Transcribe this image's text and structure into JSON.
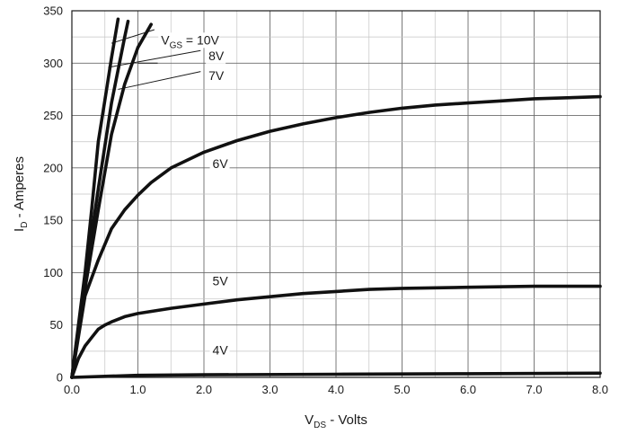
{
  "chart_data": {
    "type": "line",
    "title": "",
    "xlabel": {
      "main": "V",
      "sub": "DS",
      "rest": " - Volts"
    },
    "ylabel": {
      "main": "I",
      "sub": "D",
      "rest": " - Amperes"
    },
    "xlim": [
      0,
      8
    ],
    "ylim": [
      0,
      350
    ],
    "grid": true,
    "x_ticks": [
      {
        "value": 0,
        "label": "0.0"
      },
      {
        "value": 1,
        "label": "1.0"
      },
      {
        "value": 2,
        "label": "2.0"
      },
      {
        "value": 3,
        "label": "3.0"
      },
      {
        "value": 4,
        "label": "4.0"
      },
      {
        "value": 5,
        "label": "5.0"
      },
      {
        "value": 6,
        "label": "6.0"
      },
      {
        "value": 7,
        "label": "7.0"
      },
      {
        "value": 8,
        "label": "8.0"
      }
    ],
    "y_ticks": [
      {
        "value": 0,
        "label": "0"
      },
      {
        "value": 50,
        "label": "50"
      },
      {
        "value": 100,
        "label": "100"
      },
      {
        "value": 150,
        "label": "150"
      },
      {
        "value": 200,
        "label": "200"
      },
      {
        "value": 250,
        "label": "250"
      },
      {
        "value": 300,
        "label": "300"
      },
      {
        "value": 350,
        "label": "350"
      }
    ],
    "series": [
      {
        "name": "V_GS = 10V",
        "label": {
          "main": "V",
          "sub": "GS",
          "rest": " = 10V"
        },
        "x": [
          0,
          0.1,
          0.2,
          0.3,
          0.4,
          0.5,
          0.6,
          0.7
        ],
        "y": [
          0,
          50,
          100,
          160,
          225,
          265,
          305,
          342
        ]
      },
      {
        "name": "8V",
        "label": {
          "main": "8V",
          "sub": "",
          "rest": ""
        },
        "x": [
          0,
          0.2,
          0.4,
          0.6,
          0.8,
          0.85
        ],
        "y": [
          0,
          95,
          180,
          262,
          325,
          340
        ]
      },
      {
        "name": "7V",
        "label": {
          "main": "7V",
          "sub": "",
          "rest": ""
        },
        "x": [
          0,
          0.2,
          0.4,
          0.6,
          0.8,
          1.0,
          1.2
        ],
        "y": [
          0,
          85,
          160,
          232,
          280,
          315,
          337
        ]
      },
      {
        "name": "6V",
        "label": {
          "main": "6V",
          "sub": "",
          "rest": ""
        },
        "x": [
          0,
          0.2,
          0.4,
          0.6,
          0.8,
          1.0,
          1.2,
          1.5,
          2.0,
          2.5,
          3.0,
          3.5,
          4.0,
          4.5,
          5.0,
          5.5,
          6.0,
          6.5,
          7.0,
          7.5,
          8.0
        ],
        "y": [
          0,
          78,
          112,
          142,
          160,
          174,
          186,
          200,
          215,
          226,
          235,
          242,
          248,
          253,
          257,
          260,
          262,
          264,
          266,
          267,
          268
        ]
      },
      {
        "name": "5V",
        "label": {
          "main": "5V",
          "sub": "",
          "rest": ""
        },
        "x": [
          0,
          0.1,
          0.2,
          0.3,
          0.4,
          0.5,
          0.6,
          0.8,
          1.0,
          1.5,
          2.0,
          2.5,
          3.0,
          3.5,
          4.0,
          4.5,
          5.0,
          6.0,
          7.0,
          8.0
        ],
        "y": [
          0,
          18,
          30,
          38,
          46,
          50,
          53,
          58,
          61,
          66,
          70,
          74,
          77,
          80,
          82,
          84,
          85,
          86,
          87,
          87
        ]
      },
      {
        "name": "4V",
        "label": {
          "main": "4V",
          "sub": "",
          "rest": ""
        },
        "x": [
          0,
          0.5,
          1.0,
          2.0,
          4.0,
          6.0,
          8.0
        ],
        "y": [
          0,
          1,
          2,
          2.5,
          3,
          3.5,
          4
        ]
      }
    ],
    "curve_labels": [
      {
        "series": 0,
        "text_at": [
          1.35,
          318
        ],
        "leader": [
          [
            0.6,
            319
          ],
          [
            1.25,
            332
          ]
        ]
      },
      {
        "series": 1,
        "text_at": [
          2.07,
          303
        ],
        "leader": [
          [
            0.55,
            296
          ],
          [
            1.95,
            312
          ]
        ]
      },
      {
        "series": 2,
        "text_at": [
          2.07,
          284
        ],
        "leader": [
          [
            0.7,
            275
          ],
          [
            1.95,
            292
          ]
        ]
      },
      {
        "series": 3,
        "text_at": [
          2.13,
          200
        ],
        "leader": []
      },
      {
        "series": 4,
        "text_at": [
          2.13,
          88
        ],
        "leader": []
      },
      {
        "series": 5,
        "text_at": [
          2.13,
          22
        ],
        "leader": []
      }
    ],
    "extra_leaders": [
      {
        "from": [
          1.0,
          300
        ],
        "to": [
          1.3,
          300
        ]
      }
    ]
  }
}
